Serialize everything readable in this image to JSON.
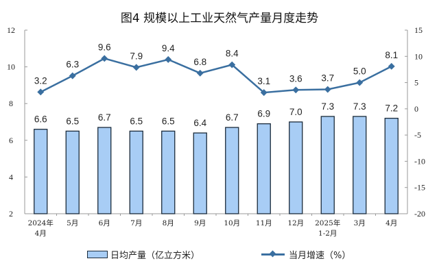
{
  "title": "图4  规模以上工业天然气产量月度走势",
  "legend": {
    "bar_label": "日均产量（亿立方米）",
    "line_label": "当月增速（%）"
  },
  "colors": {
    "bar_fill": "#a8cdf5",
    "bar_stroke": "#1a2a3a",
    "line": "#3a6fa0",
    "axis": "#999999"
  },
  "chart_data": {
    "type": "bar+line",
    "title": "图4  规模以上工业天然气产量月度走势",
    "categories": [
      "2024年4月",
      "5月",
      "6月",
      "7月",
      "8月",
      "9月",
      "10月",
      "11月",
      "12月",
      "2025年1-2月",
      "3月",
      "4月"
    ],
    "series": [
      {
        "name": "日均产量（亿立方米）",
        "type": "bar",
        "axis": "left",
        "values": [
          6.6,
          6.5,
          6.7,
          6.5,
          6.5,
          6.4,
          6.7,
          6.9,
          7.0,
          7.3,
          7.3,
          7.2
        ]
      },
      {
        "name": "当月增速（%）",
        "type": "line",
        "axis": "right",
        "values": [
          3.2,
          6.3,
          9.6,
          7.9,
          9.4,
          6.8,
          8.4,
          3.1,
          3.6,
          3.7,
          5.0,
          8.1
        ]
      }
    ],
    "left_axis": {
      "ylim": [
        2,
        12
      ],
      "ticks": [
        "12",
        "10",
        "8",
        "6",
        "4",
        "2"
      ]
    },
    "right_axis": {
      "ylim": [
        -20,
        15
      ],
      "ticks": [
        "15",
        "10",
        "5",
        "0",
        "-5",
        "-10",
        "-15",
        "-20"
      ]
    },
    "x_tick_labels": [
      [
        "2024年",
        "4月"
      ],
      [
        "5月"
      ],
      [
        "6月"
      ],
      [
        "7月"
      ],
      [
        "8月"
      ],
      [
        "9月"
      ],
      [
        "10月"
      ],
      [
        "11月"
      ],
      [
        "12月"
      ],
      [
        "2025年",
        "1-2月"
      ],
      [
        "3月"
      ],
      [
        "4月"
      ]
    ],
    "bar_labels": [
      "6.6",
      "6.5",
      "6.7",
      "6.5",
      "6.5",
      "6.4",
      "6.7",
      "6.9",
      "7.0",
      "7.3",
      "7.3",
      "7.2"
    ],
    "line_labels": [
      "3.2",
      "6.3",
      "9.6",
      "7.9",
      "9.4",
      "6.8",
      "8.4",
      "3.1",
      "3.6",
      "3.7",
      "5.0",
      "8.1"
    ],
    "grid": false,
    "legend_position": "bottom"
  }
}
